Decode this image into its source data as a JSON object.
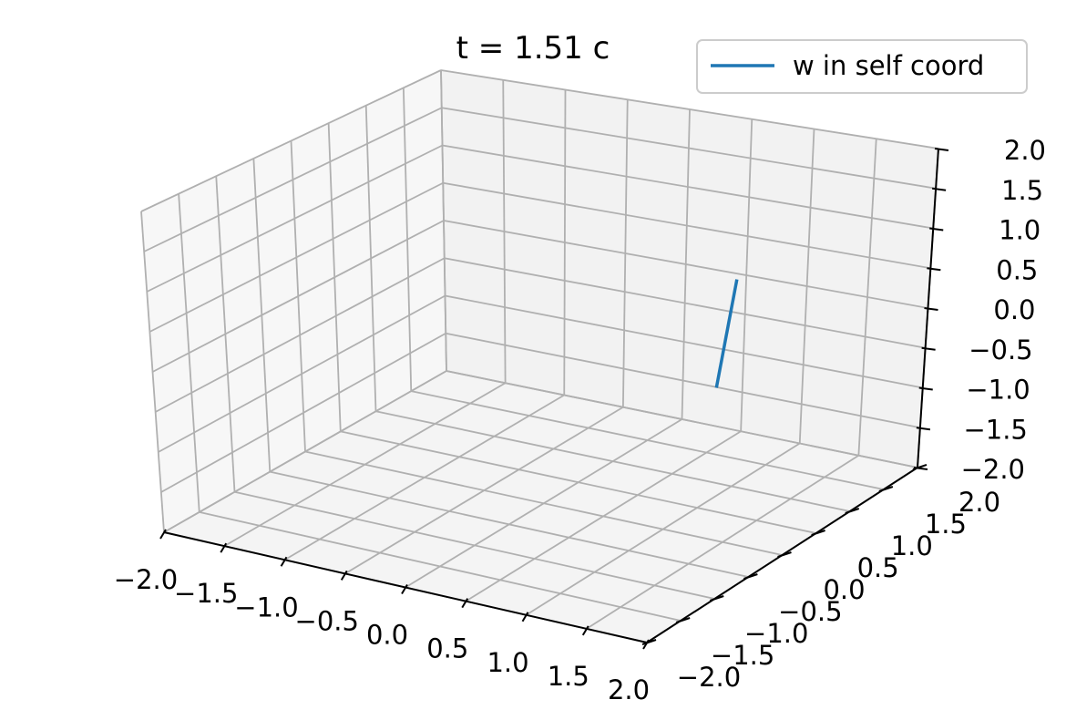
{
  "chart_data": {
    "type": "line",
    "projection": "3d",
    "title": "t = 1.51 c",
    "xlabel": "",
    "ylabel": "",
    "zlabel": "",
    "xlim": [
      -2.0,
      2.0
    ],
    "ylim": [
      -2.0,
      2.0
    ],
    "zlim": [
      -2.0,
      2.0
    ],
    "grid": true,
    "legend_position": "top-right",
    "x_ticks": [
      "−2.0",
      "−1.5",
      "−1.0",
      "−0.5",
      "0.0",
      "0.5",
      "1.0",
      "1.5",
      "2.0"
    ],
    "y_ticks": [
      "−2.0",
      "−1.5",
      "−1.0",
      "−0.5",
      "0.0",
      "0.5",
      "1.0",
      "1.5",
      "2.0"
    ],
    "z_ticks": [
      "−2.0",
      "−1.5",
      "−1.0",
      "−0.5",
      "0.0",
      "0.5",
      "1.0",
      "1.5",
      "2.0"
    ],
    "series": [
      {
        "name": "w in self coord",
        "color": "#1f77b4",
        "x": [
          0.5,
          1.5
        ],
        "y": [
          2.0,
          0.0
        ],
        "z": [
          0.0,
          0.0
        ]
      }
    ]
  }
}
